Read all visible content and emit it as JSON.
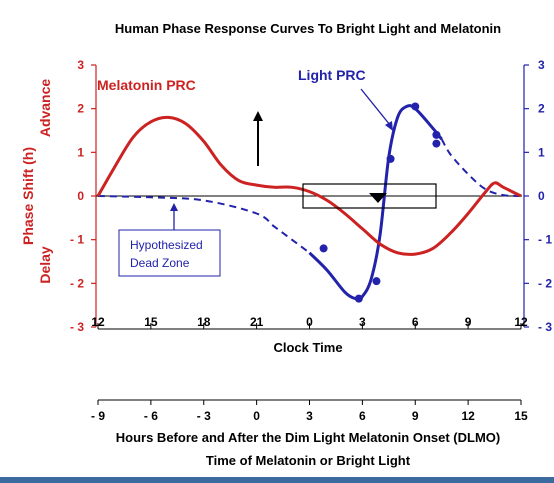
{
  "chart_data": {
    "type": "line",
    "title": "Human Phase Response Curves To Bright Light and Melatonin",
    "xlabel": "Clock Time",
    "xlabel2": "Hours Before and After the Dim Light Melatonin Onset (DLMO)",
    "xlabel3": "Time of Melatonin or Bright Light",
    "ylabel": "Phase Shift (h)",
    "ylabel_advance": "Advance",
    "ylabel_delay": "Delay",
    "ylim": [
      -3,
      3
    ],
    "xlim": [
      -9,
      15
    ],
    "y_ticks": [
      "3",
      "2",
      "1",
      "0",
      "- 1",
      "- 2",
      "- 3"
    ],
    "y_ticks_right": [
      "3",
      "2",
      "1",
      "0",
      "- 1",
      "- 2",
      "- 3"
    ],
    "clock_ticks": [
      "12",
      "15",
      "18",
      "21",
      "0",
      "3",
      "6",
      "9",
      "12"
    ],
    "dlmo_ticks": [
      "- 9",
      "- 6",
      "- 3",
      "0",
      "3",
      "6",
      "9",
      "12",
      "15"
    ],
    "grid": false,
    "series": [
      {
        "name": "Melatonin PRC",
        "color": "#cc2222",
        "style": "solid",
        "points": [
          [
            -9,
            0
          ],
          [
            -8,
            0.7
          ],
          [
            -7,
            1.35
          ],
          [
            -6,
            1.7
          ],
          [
            -5,
            1.8
          ],
          [
            -4,
            1.65
          ],
          [
            -3,
            1.25
          ],
          [
            -2,
            0.7
          ],
          [
            -1,
            0.35
          ],
          [
            0,
            0.25
          ],
          [
            1,
            0.2
          ],
          [
            2,
            0.2
          ],
          [
            3,
            0.1
          ],
          [
            4,
            -0.1
          ],
          [
            5,
            -0.4
          ],
          [
            6,
            -0.75
          ],
          [
            7,
            -1.1
          ],
          [
            8,
            -1.3
          ],
          [
            9,
            -1.33
          ],
          [
            10,
            -1.2
          ],
          [
            11,
            -0.85
          ],
          [
            12,
            -0.4
          ],
          [
            13,
            0.1
          ],
          [
            13.5,
            0.3
          ],
          [
            14,
            0.2
          ],
          [
            15,
            0
          ]
        ]
      },
      {
        "name": "Light PRC",
        "color": "#2222aa",
        "style": "mixed",
        "points": [
          [
            -9,
            0
          ],
          [
            -6,
            -0.03
          ],
          [
            -3,
            -0.1
          ],
          [
            0,
            -0.4
          ],
          [
            1,
            -0.7
          ],
          [
            2,
            -1.0
          ],
          [
            3,
            -1.3
          ],
          [
            4,
            -1.7
          ],
          [
            5,
            -2.2
          ],
          [
            5.6,
            -2.35
          ],
          [
            6,
            -2.3
          ],
          [
            6.5,
            -1.9
          ],
          [
            7,
            -0.9
          ],
          [
            7.5,
            0.9
          ],
          [
            8,
            1.8
          ],
          [
            8.5,
            2.05
          ],
          [
            9,
            2.0
          ],
          [
            10,
            1.55
          ],
          [
            10.5,
            1.3
          ],
          [
            11,
            0.95
          ],
          [
            12,
            0.5
          ],
          [
            13,
            0.15
          ],
          [
            14,
            0.02
          ],
          [
            15,
            0
          ]
        ]
      }
    ],
    "light_markers": [
      [
        3.8,
        -1.2
      ],
      [
        5.8,
        -2.35
      ],
      [
        6.8,
        -1.95
      ],
      [
        7.6,
        0.85
      ],
      [
        9,
        2.05
      ],
      [
        10.2,
        1.4
      ],
      [
        10.2,
        1.2
      ]
    ],
    "annotations": {
      "dead_zone": [
        "Hypothesized",
        "Dead Zone"
      ],
      "melatonin_label": "Melatonin PRC",
      "light_label": "Light PRC"
    }
  }
}
